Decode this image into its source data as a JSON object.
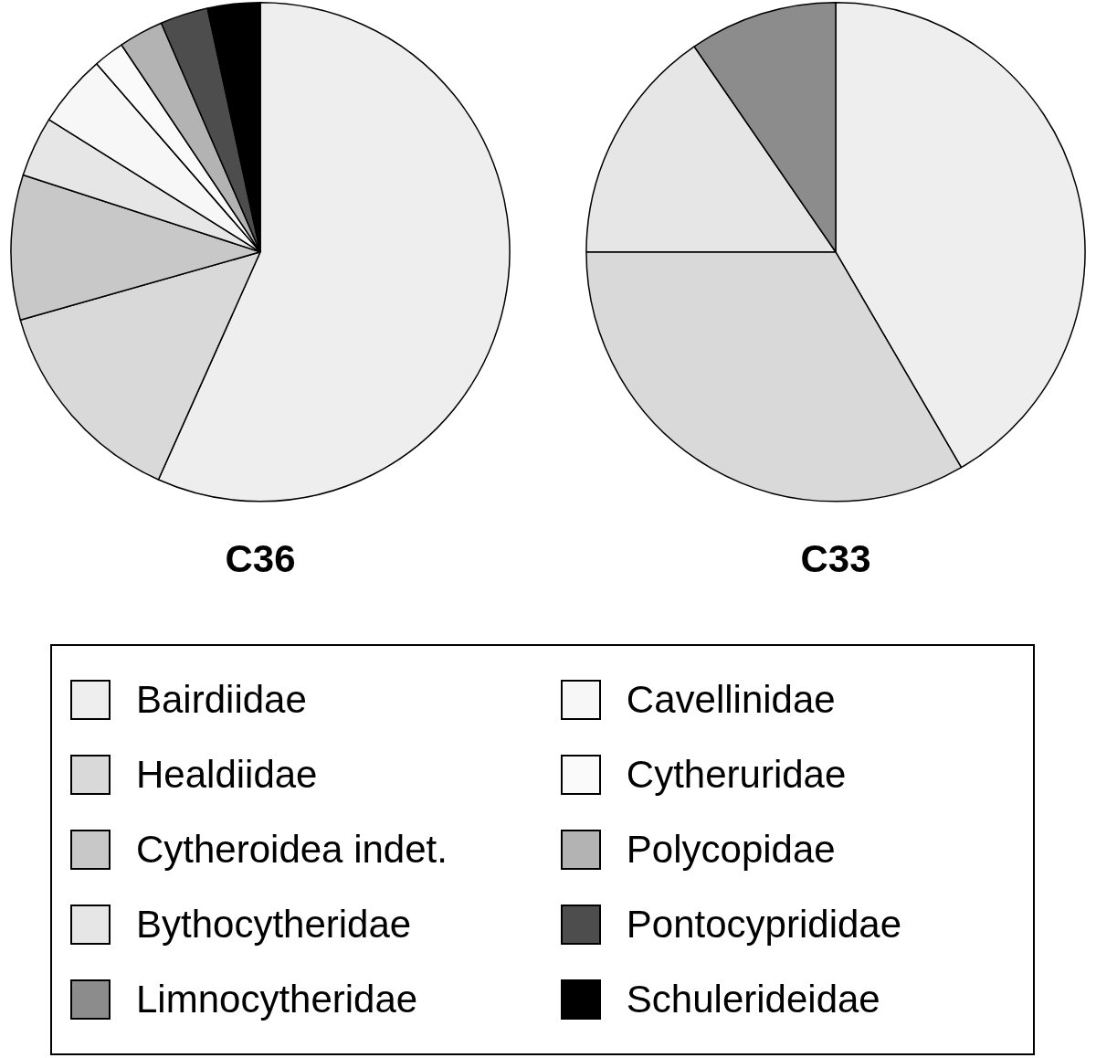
{
  "chart_data": {
    "type": "pie",
    "legend": "bottom",
    "categories": [
      "Bairdiidae",
      "Healdiidae",
      "Cytheroidea indet.",
      "Bythocytheridae",
      "Limnocytheridae",
      "Cavellinidae",
      "Cytheruridae",
      "Polycopidae",
      "Pontocyprididae",
      "Schulerideidae"
    ],
    "colors": [
      "#eeeeee",
      "#d9d9d9",
      "#c8c8c8",
      "#e6e6e6",
      "#8c8c8c",
      "#f7f7f7",
      "#fafafa",
      "#b3b3b3",
      "#4d4d4d",
      "#000000"
    ],
    "series": [
      {
        "name": "C36",
        "values": [
          56.7,
          13.9,
          9.4,
          3.9,
          0,
          4.7,
          2.0,
          2.9,
          3.1,
          3.4
        ]
      },
      {
        "name": "C33",
        "values": [
          41.6,
          33.4,
          0,
          15.4,
          9.6,
          0,
          0,
          0,
          0,
          0
        ]
      }
    ]
  }
}
